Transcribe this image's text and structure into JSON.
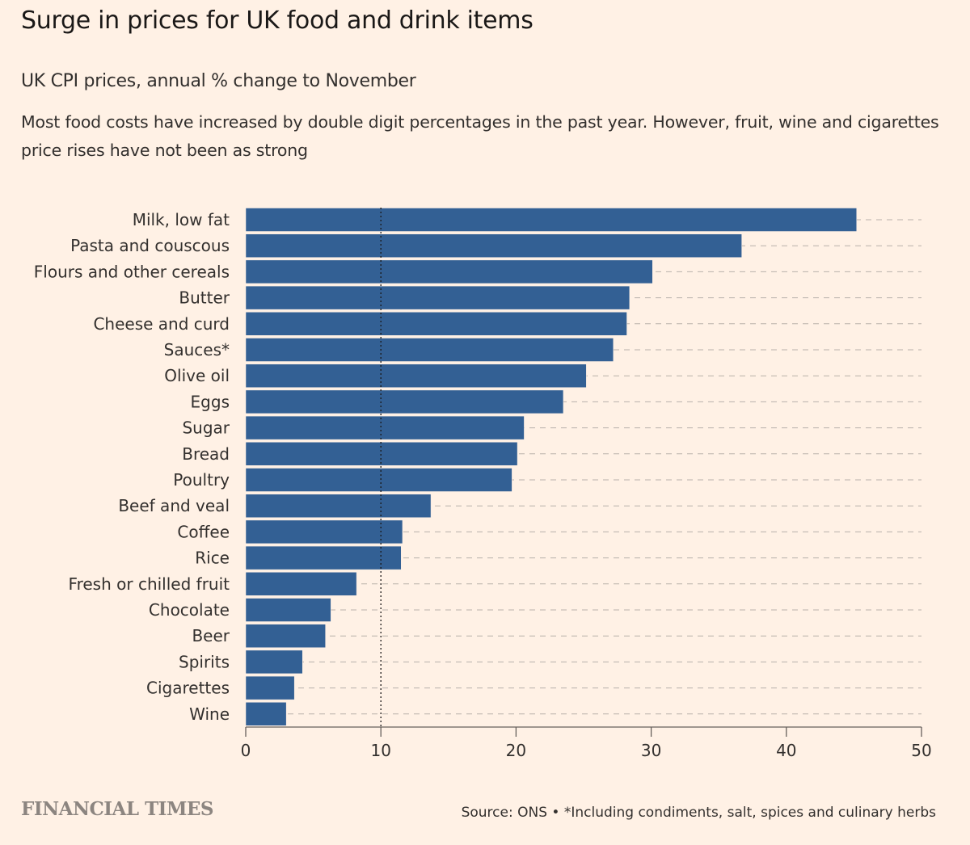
{
  "title": "Surge in prices for UK food and drink items",
  "subtitle": "UK CPI prices, annual % change to November",
  "description": "Most food costs have increased by double digit percentages in the past year. However, fruit, wine and cigarettes price rises have not been as strong",
  "source": "Source: ONS • *Including condiments, salt, spices and culinary herbs",
  "logo": "FINANCIAL TIMES",
  "chart_data": {
    "type": "bar",
    "orientation": "horizontal",
    "categories": [
      "Milk, low fat",
      "Pasta and couscous",
      "Flours and other cereals",
      "Butter",
      "Cheese and curd",
      "Sauces*",
      "Olive oil",
      "Eggs",
      "Sugar",
      "Bread",
      "Poultry",
      "Beef and veal",
      "Coffee",
      "Rice",
      "Fresh or chilled fruit",
      "Chocolate",
      "Beer",
      "Spirits",
      "Cigarettes",
      "Wine"
    ],
    "values": [
      45.2,
      36.7,
      30.1,
      28.4,
      28.2,
      27.2,
      25.2,
      23.5,
      20.6,
      20.1,
      19.7,
      13.7,
      11.6,
      11.5,
      8.2,
      6.3,
      5.9,
      4.2,
      3.6,
      3.0
    ],
    "xlim": [
      0,
      50
    ],
    "xticks": [
      "0",
      "10",
      "20",
      "30",
      "40",
      "50"
    ],
    "reference_line": 10,
    "bar_color": "#336094",
    "grid": "dashed horizontal guide lines per row"
  }
}
